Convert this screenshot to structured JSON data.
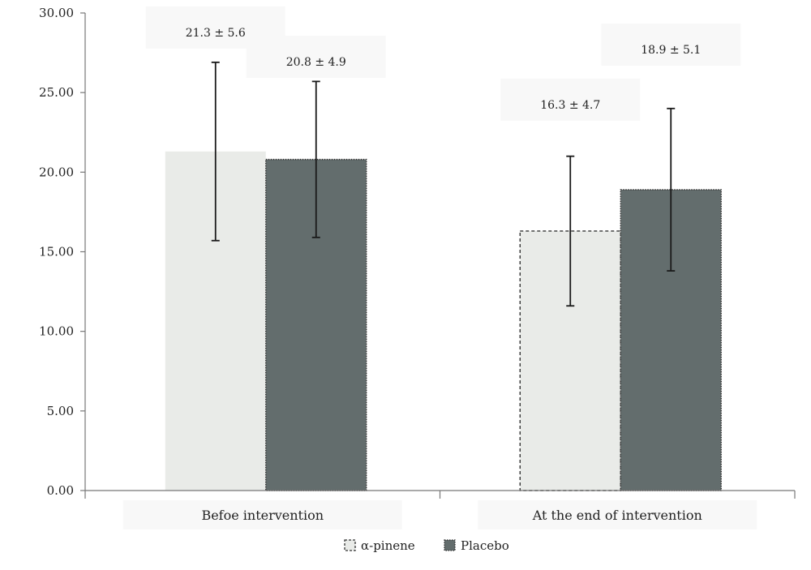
{
  "chart_data": {
    "type": "bar",
    "categories": [
      "Befoe intervention",
      "At the end of intervention"
    ],
    "series": [
      {
        "name": "α-pinene",
        "values": [
          21.3,
          16.3
        ],
        "errors": [
          5.6,
          4.7
        ],
        "labels": [
          "21.3 ± 5.6",
          "16.3 ± 4.7"
        ],
        "color": "#e9ebe8"
      },
      {
        "name": "Placebo",
        "values": [
          20.8,
          18.9
        ],
        "errors": [
          4.9,
          5.1
        ],
        "labels": [
          "20.8 ± 4.9",
          "18.9 ± 5.1"
        ],
        "color": "#636d6d"
      }
    ],
    "y_tick_labels": [
      "0.00",
      "5.00",
      "10.00",
      "15.00",
      "20.00",
      "25.00",
      "30.00"
    ],
    "ylim": [
      0,
      30
    ],
    "title": "",
    "xlabel": "",
    "ylabel": "",
    "grid": false,
    "legend": "bottom-center"
  }
}
